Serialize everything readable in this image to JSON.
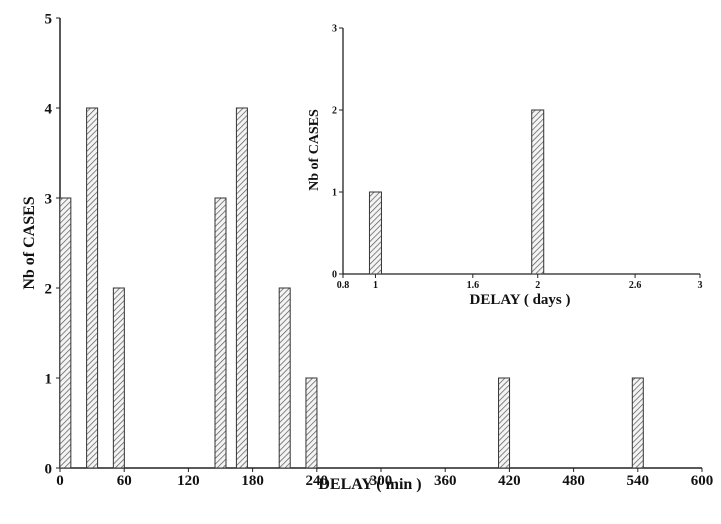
{
  "chart_data": [
    {
      "type": "bar",
      "xlabel": "DELAY ( min )",
      "ylabel": "Nb of CASES",
      "xlim": [
        0,
        600
      ],
      "ylim": [
        0,
        5
      ],
      "xticks": [
        "0",
        "60",
        "120",
        "180",
        "240",
        "300",
        "360",
        "420",
        "480",
        "540",
        "600"
      ],
      "yticks": [
        "0",
        "1",
        "2",
        "3",
        "4",
        "5"
      ],
      "x": [
        5,
        30,
        55,
        150,
        170,
        210,
        235,
        415,
        540
      ],
      "values": [
        3,
        4,
        2,
        3,
        4,
        2,
        1,
        1,
        1
      ],
      "grid": false,
      "bar_fill": "hatched",
      "bar_color": "#333333"
    },
    {
      "type": "bar",
      "xlabel": "DELAY ( days )",
      "ylabel": "Nb of CASES",
      "xlim": [
        0.8,
        3
      ],
      "ylim": [
        0,
        3
      ],
      "xticks": [
        "0.8",
        "1",
        "1.6",
        "2",
        "2.6",
        "3"
      ],
      "yticks": [
        "0",
        "1",
        "2",
        "3"
      ],
      "x": [
        1,
        2
      ],
      "values": [
        1,
        2
      ],
      "grid": false,
      "bar_fill": "hatched",
      "bar_color": "#333333"
    }
  ]
}
